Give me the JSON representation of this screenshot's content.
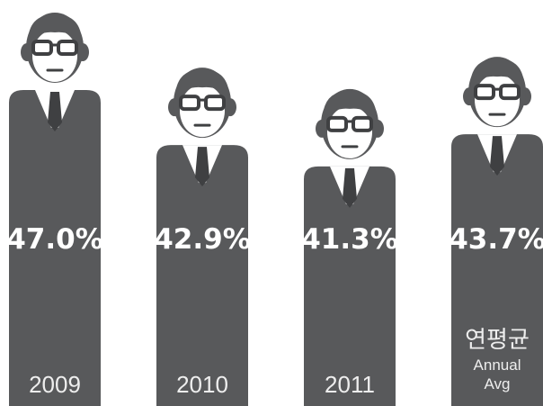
{
  "chart_data": {
    "type": "pictograph-bar",
    "categories": [
      "2009",
      "2010",
      "2011",
      "연평균"
    ],
    "sublabels": [
      null,
      null,
      null,
      "Annual Avg"
    ],
    "values": [
      47.0,
      42.9,
      41.3,
      43.7
    ],
    "value_labels": [
      "47.0%",
      "42.9%",
      "41.3%",
      "43.7%"
    ],
    "color": "#58595b"
  }
}
